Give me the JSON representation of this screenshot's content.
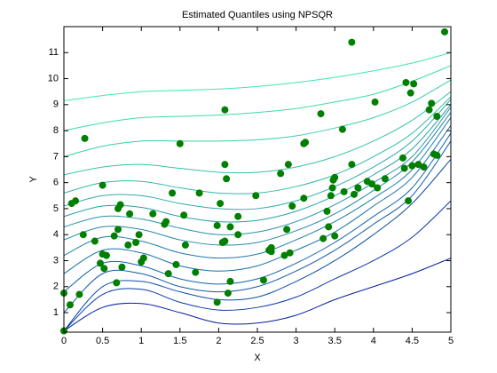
{
  "chart_data": {
    "type": "scatter",
    "title": "Estimated Quantiles using NPSQR",
    "xlabel": "X",
    "ylabel": "Y",
    "xlim": [
      0,
      5
    ],
    "ylim": [
      0.25,
      12
    ],
    "xticks": [
      0,
      0.5,
      1,
      1.5,
      2,
      2.5,
      3,
      3.5,
      4,
      4.5,
      5
    ],
    "yticks": [
      1,
      2,
      3,
      4,
      5,
      6,
      7,
      8,
      9,
      10,
      11
    ],
    "grid": false,
    "color": "#007f00",
    "x": [
      0,
      0,
      0.08,
      0.1,
      0.15,
      0.2,
      0.25,
      0.27,
      0.4,
      0.47,
      0.5,
      0.5,
      0.52,
      0.55,
      0.65,
      0.68,
      0.7,
      0.7,
      0.73,
      0.75,
      0.83,
      0.85,
      0.93,
      0.97,
      1.0,
      1.03,
      1.15,
      1.3,
      1.32,
      1.35,
      1.4,
      1.45,
      1.5,
      1.55,
      1.57,
      1.7,
      1.75,
      1.98,
      1.98,
      2.02,
      2.05,
      2.08,
      2.08,
      2.08,
      2.1,
      2.12,
      2.15,
      2.15,
      2.25,
      2.25,
      2.48,
      2.58,
      2.65,
      2.68,
      2.68,
      2.8,
      2.85,
      2.88,
      2.9,
      2.92,
      2.95,
      3.1,
      3.1,
      3.12,
      3.32,
      3.35,
      3.4,
      3.42,
      3.45,
      3.47,
      3.48,
      3.5,
      3.5,
      3.6,
      3.62,
      3.72,
      3.72,
      3.75,
      3.8,
      3.92,
      3.98,
      4.02,
      4.05,
      4.15,
      4.38,
      4.4,
      4.42,
      4.45,
      4.48,
      4.5,
      4.52,
      4.58,
      4.65,
      4.72,
      4.75,
      4.78,
      4.82,
      4.82,
      4.92
    ],
    "values": [
      0.3,
      1.75,
      1.3,
      5.2,
      5.3,
      1.7,
      4.0,
      7.7,
      3.75,
      2.9,
      5.9,
      3.25,
      2.7,
      3.2,
      3.95,
      2.15,
      4.2,
      5.0,
      5.15,
      2.75,
      3.6,
      4.8,
      3.7,
      4.0,
      2.95,
      3.1,
      4.8,
      4.4,
      4.5,
      2.5,
      5.6,
      2.85,
      7.5,
      4.75,
      3.6,
      2.55,
      5.6,
      1.4,
      4.35,
      5.2,
      3.7,
      3.75,
      8.8,
      6.7,
      6.15,
      1.75,
      2.2,
      4.3,
      4.7,
      4.0,
      5.5,
      2.25,
      3.4,
      3.35,
      3.5,
      6.35,
      3.2,
      4.2,
      6.7,
      3.3,
      5.1,
      5.4,
      7.5,
      7.55,
      8.65,
      3.85,
      4.9,
      4.3,
      5.5,
      5.8,
      6.1,
      3.95,
      6.2,
      8.05,
      5.65,
      6.7,
      11.4,
      5.55,
      5.8,
      6.05,
      5.95,
      9.1,
      5.8,
      6.15,
      6.95,
      6.55,
      9.85,
      5.3,
      9.45,
      6.65,
      9.8,
      6.7,
      6.6,
      8.8,
      9.05,
      7.1,
      7.05,
      8.55,
      11.8
    ],
    "curves": {
      "x": [
        0,
        0.5,
        1,
        1.5,
        2,
        2.5,
        3,
        3.5,
        4,
        4.5,
        5
      ],
      "series": [
        {
          "color": "#40e8a8",
          "values": [
            9.15,
            9.35,
            9.5,
            9.55,
            9.6,
            9.7,
            9.85,
            10.05,
            10.3,
            10.6,
            11.0
          ]
        },
        {
          "color": "#3cdca8",
          "values": [
            8.0,
            8.3,
            8.5,
            8.55,
            8.6,
            8.7,
            8.85,
            9.1,
            9.4,
            9.9,
            10.5
          ]
        },
        {
          "color": "#38d0a8",
          "values": [
            7.0,
            7.4,
            7.6,
            7.6,
            7.6,
            7.65,
            7.8,
            8.1,
            8.5,
            9.1,
            9.95
          ]
        },
        {
          "color": "#34c4a8",
          "values": [
            6.3,
            6.6,
            6.7,
            6.55,
            6.4,
            6.4,
            6.6,
            7.0,
            7.6,
            8.4,
            9.5
          ]
        },
        {
          "color": "#30b8a8",
          "values": [
            5.6,
            6.0,
            6.05,
            5.8,
            5.6,
            5.6,
            5.85,
            6.3,
            7.0,
            7.9,
            9.3
          ]
        },
        {
          "color": "#2caca8",
          "values": [
            5.1,
            5.5,
            5.5,
            5.2,
            5.0,
            5.0,
            5.3,
            5.85,
            6.6,
            7.6,
            9.2
          ]
        },
        {
          "color": "#28a0a8",
          "values": [
            4.7,
            5.1,
            5.05,
            4.7,
            4.5,
            4.55,
            4.9,
            5.5,
            6.3,
            7.3,
            9.0
          ]
        },
        {
          "color": "#2494a8",
          "values": [
            4.3,
            4.7,
            4.6,
            4.25,
            4.0,
            4.1,
            4.5,
            5.15,
            6.0,
            7.0,
            8.9
          ]
        },
        {
          "color": "#2088a8",
          "values": [
            3.8,
            4.3,
            4.2,
            3.8,
            3.6,
            3.7,
            4.15,
            4.8,
            5.7,
            6.8,
            8.7
          ]
        },
        {
          "color": "#1c7ca8",
          "values": [
            3.2,
            3.9,
            3.75,
            3.3,
            3.1,
            3.25,
            3.8,
            4.5,
            5.4,
            6.5,
            8.5
          ]
        },
        {
          "color": "#1870a8",
          "values": [
            2.5,
            3.4,
            3.3,
            2.8,
            2.6,
            2.8,
            3.4,
            4.1,
            5.1,
            6.2,
            8.2
          ]
        },
        {
          "color": "#1464a8",
          "values": [
            1.8,
            2.9,
            2.8,
            2.3,
            2.1,
            2.3,
            2.9,
            3.7,
            4.7,
            5.8,
            7.9
          ]
        },
        {
          "color": "#1058a8",
          "values": [
            1.0,
            2.5,
            2.5,
            2.0,
            1.8,
            2.0,
            2.6,
            3.4,
            4.4,
            5.5,
            7.6
          ]
        },
        {
          "color": "#0c4ca8",
          "values": [
            0.3,
            2.0,
            2.2,
            1.8,
            1.5,
            1.6,
            2.2,
            3.0,
            4.0,
            5.2,
            6.9
          ]
        },
        {
          "color": "#0838a8",
          "values": [
            0.3,
            1.7,
            1.9,
            1.4,
            1.1,
            1.2,
            1.6,
            2.3,
            3.0,
            3.9,
            5.3
          ]
        },
        {
          "color": "#0420a0",
          "values": [
            0.3,
            1.2,
            1.35,
            1.0,
            0.6,
            0.6,
            0.9,
            1.5,
            2.0,
            2.5,
            3.1
          ]
        }
      ]
    }
  }
}
